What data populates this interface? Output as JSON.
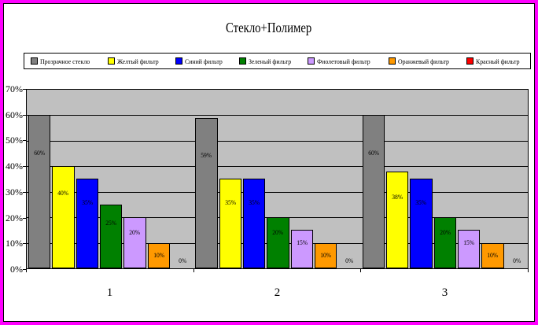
{
  "frame": {
    "outer_border_color": "#FF00FF",
    "inner_border_color": "#000000"
  },
  "legend": {
    "items": [
      {
        "label": "Прозрачное стекло",
        "color": "#808080"
      },
      {
        "label": "Желтый фильтр",
        "color": "#FFFF00"
      },
      {
        "label": "Синий фильтр",
        "color": "#0000FF"
      },
      {
        "label": "Зеленый фильтр",
        "color": "#008000"
      },
      {
        "label": "Фиолетовый фильтр",
        "color": "#CC99FF"
      },
      {
        "label": "Оранжевый фильтр",
        "color": "#FF9900"
      },
      {
        "label": "Красный фильтр",
        "color": "#FF0000"
      }
    ]
  },
  "chart_data": {
    "type": "bar",
    "title": "Стекло+Полимер",
    "categories": [
      "1",
      "2",
      "3"
    ],
    "series": [
      {
        "name": "Прозрачное стекло",
        "color": "#808080",
        "values": [
          60,
          59,
          60
        ]
      },
      {
        "name": "Желтый фильтр",
        "color": "#FFFF00",
        "values": [
          40,
          35,
          38
        ]
      },
      {
        "name": "Синий фильтр",
        "color": "#0000FF",
        "values": [
          35,
          35,
          35
        ]
      },
      {
        "name": "Зеленый фильтр",
        "color": "#008000",
        "values": [
          25,
          20,
          20
        ]
      },
      {
        "name": "Фиолетовый фильтр",
        "color": "#CC99FF",
        "values": [
          20,
          15,
          15
        ]
      },
      {
        "name": "Оранжевый фильтр",
        "color": "#FF9900",
        "values": [
          10,
          10,
          10
        ]
      },
      {
        "name": "Красный фильтр",
        "color": "#FF0000",
        "values": [
          0,
          0,
          0
        ]
      }
    ],
    "data_labels": [
      [
        "60%",
        "40%",
        "35%",
        "25%",
        "20%",
        "10%",
        "0%"
      ],
      [
        "59%",
        "35%",
        "35%",
        "20%",
        "15%",
        "10%",
        "0%"
      ],
      [
        "60%",
        "38%",
        "35%",
        "20%",
        "15%",
        "10%",
        "0%"
      ]
    ],
    "y_ticks": [
      "70%",
      "60%",
      "50%",
      "40%",
      "30%",
      "20%",
      "10%",
      "0%"
    ],
    "ylim": [
      0,
      70
    ],
    "grid": true,
    "legend_position": "top",
    "plot_bg": "#C0C0C0",
    "gridline_color": "#000000"
  }
}
